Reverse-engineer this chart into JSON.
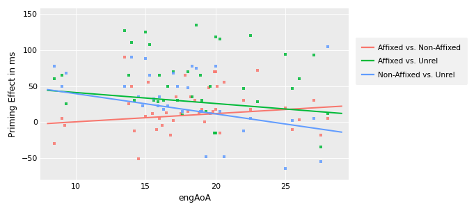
{
  "title": "",
  "xlabel": "engAoA",
  "ylabel": "Priming Effect in ms",
  "xlim": [
    7.5,
    29.5
  ],
  "ylim": [
    -80,
    158
  ],
  "yticks": [
    -50,
    0,
    50,
    100,
    150
  ],
  "xticks": [
    10,
    15,
    20,
    25
  ],
  "background_color": "#ffffff",
  "panel_color": "#ebebeb",
  "grid_color": "#ffffff",
  "colors": {
    "red": "#F8766D",
    "green": "#00BA38",
    "blue": "#619CFF"
  },
  "line_red": {
    "x0": 8.0,
    "y0": -2,
    "x1": 29.0,
    "y1": 22
  },
  "line_green": {
    "x0": 8.0,
    "y0": 44,
    "x1": 29.0,
    "y1": 12
  },
  "line_blue": {
    "x0": 8.0,
    "y0": 45,
    "x1": 29.0,
    "y1": -14
  },
  "scatter_red": [
    [
      8.5,
      -30
    ],
    [
      9.0,
      5
    ],
    [
      9.2,
      -5
    ],
    [
      13.5,
      90
    ],
    [
      13.8,
      25
    ],
    [
      14.0,
      50
    ],
    [
      14.2,
      -12
    ],
    [
      14.5,
      -51
    ],
    [
      15.0,
      8
    ],
    [
      15.2,
      55
    ],
    [
      15.5,
      12
    ],
    [
      15.8,
      -10
    ],
    [
      16.0,
      5
    ],
    [
      16.2,
      -5
    ],
    [
      16.5,
      13
    ],
    [
      16.8,
      -18
    ],
    [
      17.0,
      2
    ],
    [
      17.2,
      35
    ],
    [
      17.5,
      12
    ],
    [
      17.8,
      65
    ],
    [
      18.0,
      15
    ],
    [
      18.2,
      35
    ],
    [
      18.5,
      30
    ],
    [
      18.8,
      12
    ],
    [
      19.0,
      18
    ],
    [
      19.2,
      0
    ],
    [
      19.5,
      48
    ],
    [
      19.8,
      15
    ],
    [
      19.9,
      70
    ],
    [
      20.0,
      70
    ],
    [
      20.1,
      50
    ],
    [
      20.0,
      18
    ],
    [
      20.3,
      -15
    ],
    [
      20.6,
      55
    ],
    [
      22.0,
      30
    ],
    [
      22.5,
      18
    ],
    [
      23.0,
      72
    ],
    [
      25.0,
      20
    ],
    [
      25.5,
      -10
    ],
    [
      26.0,
      3
    ],
    [
      27.0,
      30
    ],
    [
      27.5,
      -18
    ],
    [
      28.0,
      5
    ]
  ],
  "scatter_green": [
    [
      8.5,
      60
    ],
    [
      9.0,
      65
    ],
    [
      9.3,
      25
    ],
    [
      13.5,
      127
    ],
    [
      13.8,
      65
    ],
    [
      14.0,
      110
    ],
    [
      14.2,
      30
    ],
    [
      15.0,
      125
    ],
    [
      15.3,
      108
    ],
    [
      15.6,
      30
    ],
    [
      15.9,
      28
    ],
    [
      16.0,
      65
    ],
    [
      16.3,
      30
    ],
    [
      16.6,
      50
    ],
    [
      17.0,
      70
    ],
    [
      17.3,
      30
    ],
    [
      17.6,
      10
    ],
    [
      18.0,
      70
    ],
    [
      18.3,
      35
    ],
    [
      18.6,
      135
    ],
    [
      18.9,
      65
    ],
    [
      19.0,
      30
    ],
    [
      19.3,
      15
    ],
    [
      19.6,
      50
    ],
    [
      19.9,
      -15
    ],
    [
      20.0,
      -15
    ],
    [
      20.0,
      118
    ],
    [
      20.3,
      115
    ],
    [
      22.0,
      47
    ],
    [
      22.5,
      120
    ],
    [
      23.0,
      28
    ],
    [
      25.0,
      94
    ],
    [
      25.5,
      47
    ],
    [
      26.0,
      60
    ],
    [
      27.0,
      93
    ],
    [
      27.5,
      -35
    ],
    [
      28.0,
      12
    ]
  ],
  "scatter_blue": [
    [
      8.5,
      78
    ],
    [
      9.0,
      50
    ],
    [
      9.3,
      68
    ],
    [
      13.5,
      50
    ],
    [
      14.0,
      90
    ],
    [
      14.5,
      35
    ],
    [
      14.8,
      22
    ],
    [
      15.0,
      88
    ],
    [
      15.3,
      65
    ],
    [
      15.6,
      32
    ],
    [
      15.9,
      22
    ],
    [
      16.0,
      35
    ],
    [
      16.3,
      18
    ],
    [
      16.6,
      22
    ],
    [
      17.0,
      68
    ],
    [
      17.3,
      50
    ],
    [
      17.6,
      15
    ],
    [
      18.0,
      48
    ],
    [
      18.3,
      78
    ],
    [
      18.6,
      75
    ],
    [
      18.9,
      15
    ],
    [
      19.0,
      15
    ],
    [
      19.3,
      -48
    ],
    [
      19.6,
      12
    ],
    [
      20.0,
      78
    ],
    [
      20.3,
      15
    ],
    [
      20.6,
      -48
    ],
    [
      22.0,
      -12
    ],
    [
      22.5,
      5
    ],
    [
      25.0,
      -65
    ],
    [
      25.5,
      2
    ],
    [
      27.0,
      5
    ],
    [
      27.5,
      -55
    ],
    [
      28.0,
      105
    ]
  ],
  "legend_entries": [
    "Affixed vs. Non-Affixed",
    "Affixed vs. Unrel",
    "Non-Affixed vs. Unrel"
  ],
  "marker_size": 12,
  "marker_alpha": 0.85,
  "line_width": 1.8
}
